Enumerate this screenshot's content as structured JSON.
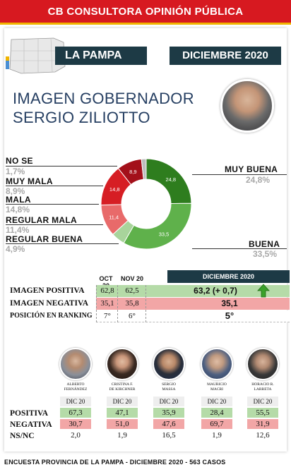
{
  "header": {
    "title": "CB CONSULTORA OPINIÓN PÚBLICA"
  },
  "region": {
    "name": "LA PAMPA",
    "date": "DICIEMBRE 2020"
  },
  "title": {
    "line1": "IMAGEN GOBERNADOR",
    "line2": "SERGIO ZILIOTTO"
  },
  "colors": {
    "red": "#d71920",
    "navy": "#1d3a45",
    "dark_green": "#2e7d1e",
    "green": "#5fb14b",
    "light_green": "#a8d49b",
    "dark_red": "#a3101a",
    "mid_red": "#d61e24",
    "salmon": "#e86a6a",
    "grey": "#bdbdbd",
    "row_green": "#b5dba8",
    "row_red": "#f2a6a6"
  },
  "chart_data": {
    "type": "pie",
    "labels": [
      "MUY BUENA",
      "BUENA",
      "REGULAR BUENA",
      "REGULAR MALA",
      "MALA",
      "MUY MALA",
      "NO SE"
    ],
    "values": [
      24.8,
      33.5,
      4.9,
      11.4,
      14.8,
      8.9,
      1.7
    ],
    "value_labels": [
      "24,8",
      "33,5",
      "",
      "11,4",
      "14,8",
      "8,9",
      ""
    ],
    "legend": [
      {
        "label": "NO SE",
        "value": "1,7%"
      },
      {
        "label": "MUY MALA",
        "value": "8,9%"
      },
      {
        "label": "MALA",
        "value": "14,8%"
      },
      {
        "label": "REGULAR MALA",
        "value": "11,4%"
      },
      {
        "label": "REGULAR BUENA",
        "value": "4,9%"
      },
      {
        "label": "MUY BUENA",
        "value": "24,8%"
      },
      {
        "label": "BUENA",
        "value": "33,5%"
      }
    ]
  },
  "image_table": {
    "headers": {
      "oct": "OCT 20",
      "nov": "NOV 20",
      "dic": "DICIEMBRE 2020"
    },
    "rows": [
      {
        "label": "IMAGEN POSITIVA",
        "oct": "62,8",
        "nov": "62,5",
        "dic": "63,2 (+ 0,7)"
      },
      {
        "label": "IMAGEN NEGATIVA",
        "oct": "35,1",
        "nov": "35,8",
        "dic": "35,1"
      },
      {
        "label": "POSICIÓN EN RANKING",
        "oct": "7°",
        "nov": "6°",
        "dic": "5°"
      }
    ]
  },
  "candidates": {
    "row_labels": {
      "pos": "POSITIVA",
      "neg": "NEGATIVA",
      "ns": "NS/NC"
    },
    "period": "DIC 20",
    "list": [
      {
        "name1": "ALBERTO",
        "name2": "FERNÁNDEZ",
        "pos": "67,3",
        "neg": "30,7",
        "ns": "2,0"
      },
      {
        "name1": "CRISTINA F.",
        "name2": "DE KIRCHNER",
        "pos": "47,1",
        "neg": "51,0",
        "ns": "1,9"
      },
      {
        "name1": "SERGIO",
        "name2": "MASSA",
        "pos": "35,9",
        "neg": "47,6",
        "ns": "16,5"
      },
      {
        "name1": "MAURICIO",
        "name2": "MACRI",
        "pos": "28,4",
        "neg": "69,7",
        "ns": "1,9"
      },
      {
        "name1": "HORACIO R.",
        "name2": "LARRETA",
        "pos": "55,5",
        "neg": "31,9",
        "ns": "12,6"
      }
    ]
  },
  "footer": {
    "text": "ENCUESTA PROVINCIA DE LA PAMPA - DICIEMBRE 2020 -  563 CASOS"
  }
}
